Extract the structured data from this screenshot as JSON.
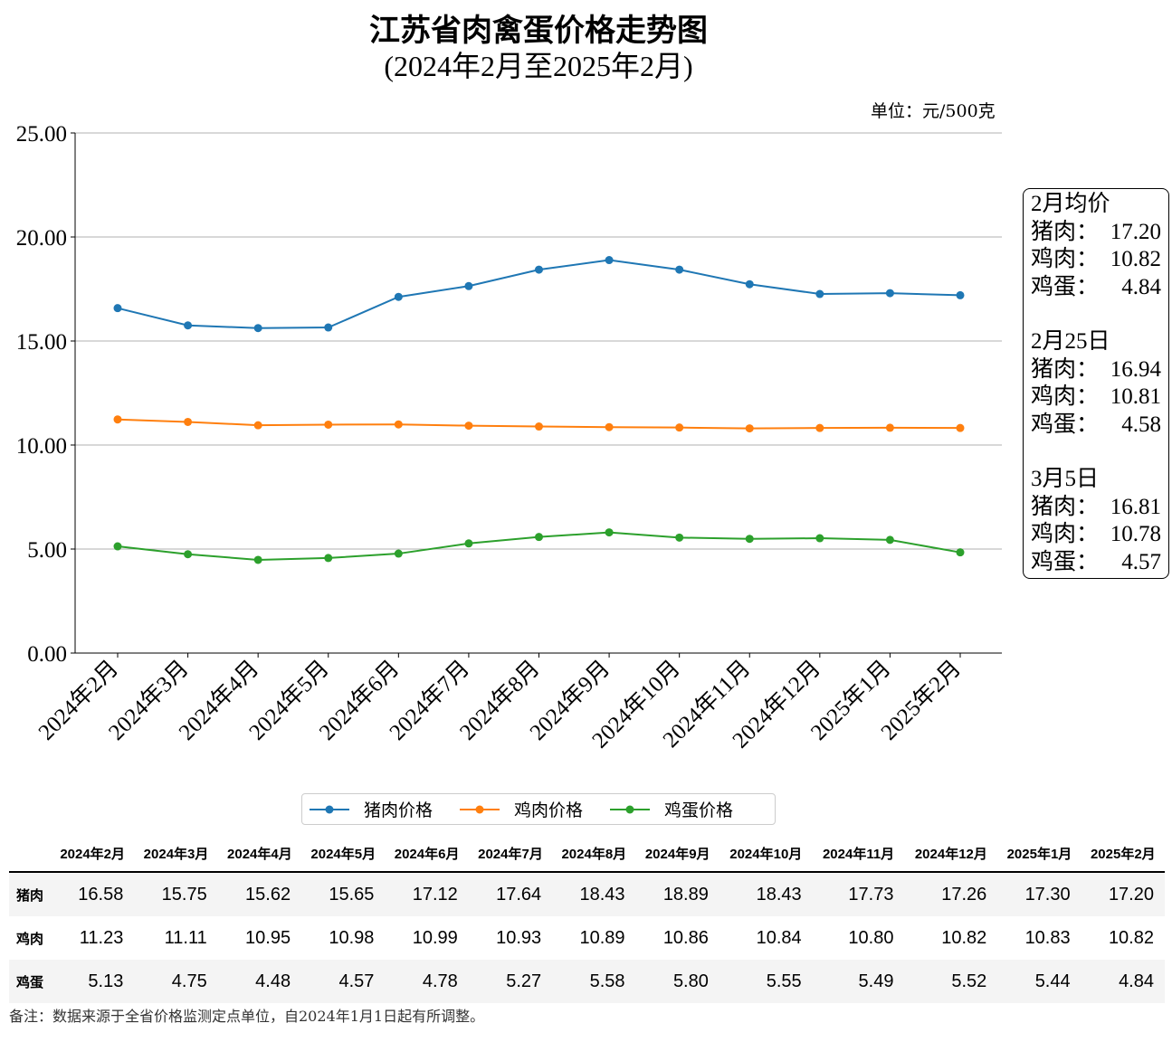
{
  "title": "江苏省肉禽蛋价格走势图",
  "subtitle": "(2024年2月至2025年2月)",
  "unit": "单位：元/500克",
  "chart_data": {
    "type": "line",
    "title": "江苏省肉禽蛋价格走势图",
    "subtitle": "(2024年2月至2025年2月)",
    "ylabel": "单位：元/500克",
    "categories": [
      "2024年2月",
      "2024年3月",
      "2024年4月",
      "2024年5月",
      "2024年6月",
      "2024年7月",
      "2024年8月",
      "2024年9月",
      "2024年10月",
      "2024年11月",
      "2024年12月",
      "2025年1月",
      "2025年2月"
    ],
    "ylim": [
      0,
      25
    ],
    "yticks": [
      "0.00",
      "5.00",
      "10.00",
      "15.00",
      "20.00",
      "25.00"
    ],
    "grid": "horizontal",
    "legend_position": "bottom-center",
    "series": [
      {
        "name": "猪肉价格",
        "color": "#1f77b4",
        "values": [
          16.58,
          15.75,
          15.62,
          15.65,
          17.12,
          17.64,
          18.43,
          18.89,
          18.43,
          17.73,
          17.26,
          17.3,
          17.2
        ]
      },
      {
        "name": "鸡肉价格",
        "color": "#ff7f0e",
        "values": [
          11.23,
          11.11,
          10.95,
          10.98,
          10.99,
          10.93,
          10.89,
          10.86,
          10.84,
          10.8,
          10.82,
          10.83,
          10.82
        ]
      },
      {
        "name": "鸡蛋价格",
        "color": "#2ca02c",
        "values": [
          5.13,
          4.75,
          4.48,
          4.57,
          4.78,
          5.27,
          5.58,
          5.8,
          5.55,
          5.49,
          5.52,
          5.44,
          4.84
        ]
      }
    ]
  },
  "side_box": [
    {
      "heading": "2月均价",
      "rows": [
        [
          "猪肉：",
          "17.20"
        ],
        [
          "鸡肉：",
          "10.82"
        ],
        [
          "鸡蛋：",
          "4.84"
        ]
      ]
    },
    {
      "heading": "2月25日",
      "rows": [
        [
          "猪肉：",
          "16.94"
        ],
        [
          "鸡肉：",
          "10.81"
        ],
        [
          "鸡蛋：",
          "4.58"
        ]
      ]
    },
    {
      "heading": "3月5日",
      "rows": [
        [
          "猪肉：",
          "16.81"
        ],
        [
          "鸡肉：",
          "10.78"
        ],
        [
          "鸡蛋：",
          "4.57"
        ]
      ]
    }
  ],
  "table": {
    "columns": [
      "2024年2月",
      "2024年3月",
      "2024年4月",
      "2024年5月",
      "2024年6月",
      "2024年7月",
      "2024年8月",
      "2024年9月",
      "2024年10月",
      "2024年11月",
      "2024年12月",
      "2025年1月",
      "2025年2月"
    ],
    "rows": [
      {
        "label": "猪肉",
        "values": [
          "16.58",
          "15.75",
          "15.62",
          "15.65",
          "17.12",
          "17.64",
          "18.43",
          "18.89",
          "18.43",
          "17.73",
          "17.26",
          "17.30",
          "17.20"
        ]
      },
      {
        "label": "鸡肉",
        "values": [
          "11.23",
          "11.11",
          "10.95",
          "10.98",
          "10.99",
          "10.93",
          "10.89",
          "10.86",
          "10.84",
          "10.80",
          "10.82",
          "10.83",
          "10.82"
        ]
      },
      {
        "label": "鸡蛋",
        "values": [
          "5.13",
          "4.75",
          "4.48",
          "4.57",
          "4.78",
          "5.27",
          "5.58",
          "5.80",
          "5.55",
          "5.49",
          "5.52",
          "5.44",
          "4.84"
        ]
      }
    ]
  },
  "note": "备注：数据来源于全省价格监测定点单位，自2024年1月1日起有所调整。"
}
